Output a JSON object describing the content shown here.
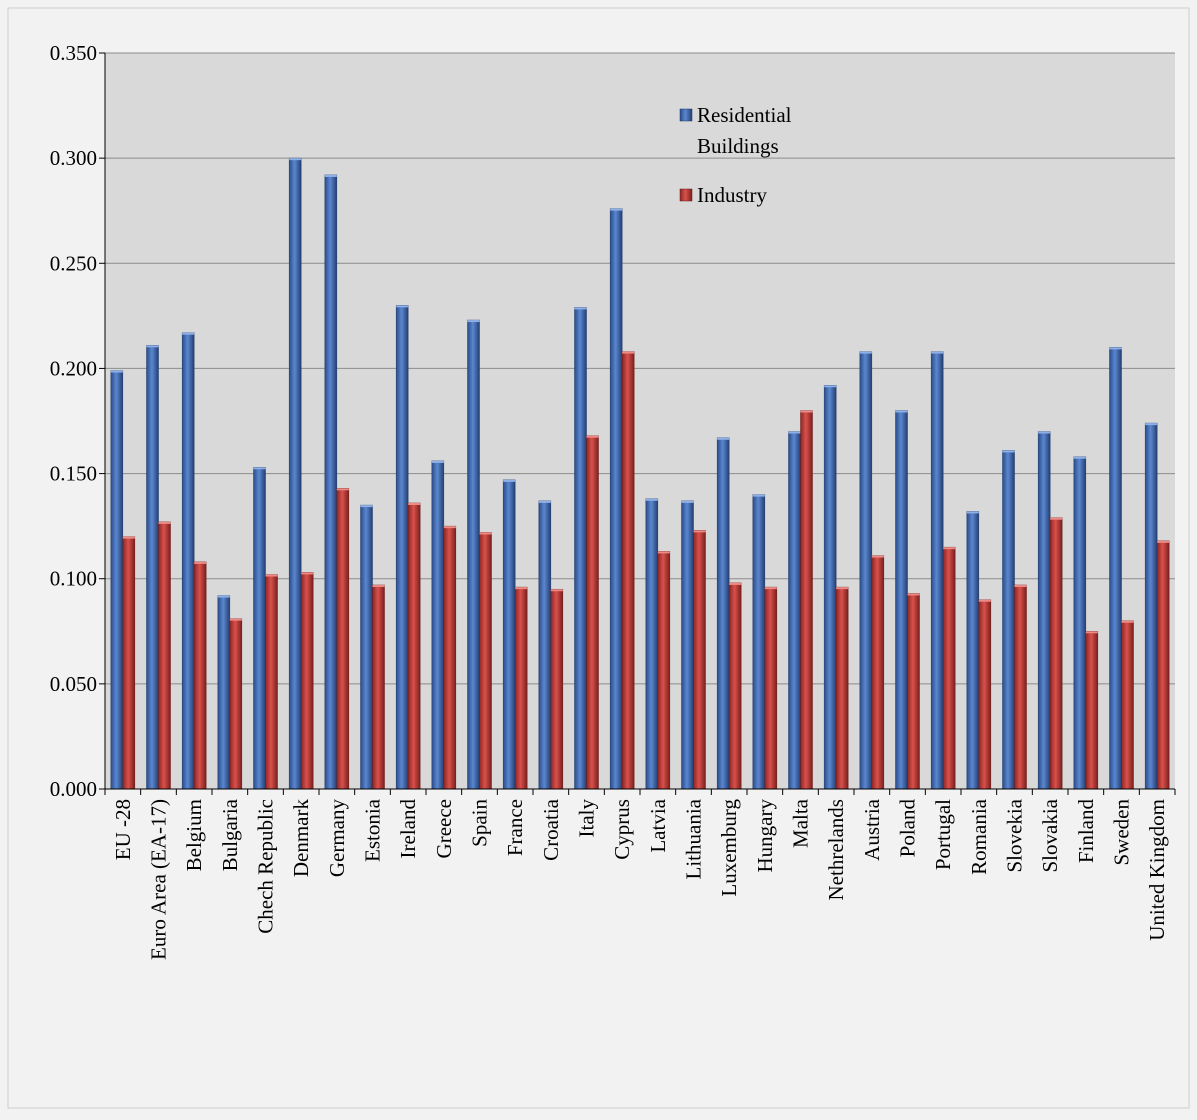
{
  "chart_data": {
    "type": "bar",
    "title": "",
    "xlabel": "",
    "ylabel": "",
    "ylim": [
      0,
      0.35
    ],
    "ytick_step": 0.05,
    "ytick_labels": [
      "0.000",
      "0.050",
      "0.100",
      "0.150",
      "0.200",
      "0.250",
      "0.300",
      "0.350"
    ],
    "grid": true,
    "legend_position": "top-center",
    "categories": [
      "EU -28",
      "Euro Area (EA-17)",
      "Belgium",
      "Bulgaria",
      "Chech Republic",
      "Denmark",
      "Germany",
      "Estonia",
      "Ireland",
      "Greece",
      "Spain",
      "France",
      "Croatia",
      "Italy",
      "Cyprus",
      "Latvia",
      "Lithuania",
      "Luxemburg",
      "Hungary",
      "Malta",
      "Nethrelands",
      "Austria",
      "Poland",
      "Portugal",
      "Romania",
      "Slovekia",
      "Slovakia",
      "Finland",
      "Sweden",
      "United Kingdom"
    ],
    "series": [
      {
        "name": "Residential Buildings",
        "color": "#4472c4",
        "values": [
          0.199,
          0.211,
          0.217,
          0.092,
          0.153,
          0.3,
          0.292,
          0.135,
          0.23,
          0.156,
          0.223,
          0.147,
          0.137,
          0.229,
          0.276,
          0.138,
          0.137,
          0.167,
          0.14,
          0.17,
          0.192,
          0.208,
          0.18,
          0.208,
          0.132,
          0.161,
          0.17,
          0.158,
          0.21,
          0.174
        ]
      },
      {
        "name": "Industry",
        "color": "#c0504d",
        "values": [
          0.12,
          0.127,
          0.108,
          0.081,
          0.102,
          0.103,
          0.143,
          0.097,
          0.136,
          0.125,
          0.122,
          0.096,
          0.095,
          0.168,
          0.208,
          0.113,
          0.123,
          0.098,
          0.096,
          0.18,
          0.096,
          0.111,
          0.093,
          0.115,
          0.09,
          0.097,
          0.129,
          0.075,
          0.08,
          0.118
        ]
      }
    ],
    "legend": {
      "residential_line1": "Residential",
      "residential_line2": "Buildings",
      "industry": "Industry"
    }
  }
}
